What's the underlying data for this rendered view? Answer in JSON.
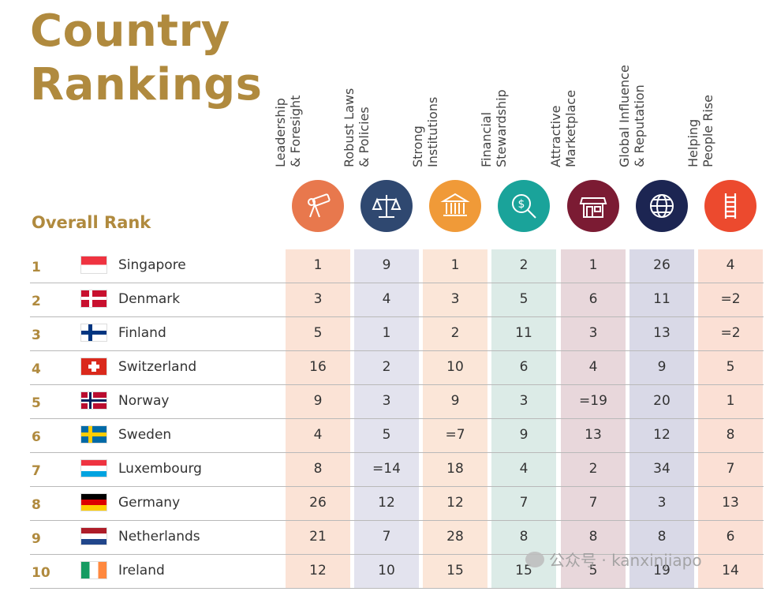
{
  "title_line1": "Country",
  "title_line2": "Rankings",
  "overall_label": "Overall Rank",
  "columns": [
    {
      "label": "Leadership\n& Foresight",
      "icon": "telescope-icon",
      "icon_color": "#e8784d",
      "col_color": "#fbe3d6"
    },
    {
      "label": "Robust Laws\n& Policies",
      "icon": "scales-icon",
      "icon_color": "#2f4870",
      "col_color": "#e3e3ee"
    },
    {
      "label": "Strong\nInstitutions",
      "icon": "building-icon",
      "icon_color": "#f09a38",
      "col_color": "#fbe6d8"
    },
    {
      "label": "Financial\nStewardship",
      "icon": "money-search-icon",
      "icon_color": "#1aa39a",
      "col_color": "#dcebe7"
    },
    {
      "label": "Attractive\nMarketplace",
      "icon": "storefront-icon",
      "icon_color": "#7b1b33",
      "col_color": "#e8d7db"
    },
    {
      "label": "Global Influence\n& Reputation",
      "icon": "globe-icon",
      "icon_color": "#1c2552",
      "col_color": "#d9d9e7"
    },
    {
      "label": "Helping\nPeople Rise",
      "icon": "ladder-icon",
      "icon_color": "#ec4a2e",
      "col_color": "#fbe0d5"
    }
  ],
  "rows": [
    {
      "rank": "1",
      "country": "Singapore",
      "flag": "singapore-flag",
      "values": [
        "1",
        "9",
        "1",
        "2",
        "1",
        "26",
        "4"
      ]
    },
    {
      "rank": "2",
      "country": "Denmark",
      "flag": "denmark-flag",
      "values": [
        "3",
        "4",
        "3",
        "5",
        "6",
        "11",
        "=2"
      ]
    },
    {
      "rank": "3",
      "country": "Finland",
      "flag": "finland-flag",
      "values": [
        "5",
        "1",
        "2",
        "11",
        "3",
        "13",
        "=2"
      ]
    },
    {
      "rank": "4",
      "country": "Switzerland",
      "flag": "switzerland-flag",
      "values": [
        "16",
        "2",
        "10",
        "6",
        "4",
        "9",
        "5"
      ]
    },
    {
      "rank": "5",
      "country": "Norway",
      "flag": "norway-flag",
      "values": [
        "9",
        "3",
        "9",
        "3",
        "=19",
        "20",
        "1"
      ]
    },
    {
      "rank": "6",
      "country": "Sweden",
      "flag": "sweden-flag",
      "values": [
        "4",
        "5",
        "=7",
        "9",
        "13",
        "12",
        "8"
      ]
    },
    {
      "rank": "7",
      "country": "Luxembourg",
      "flag": "luxembourg-flag",
      "values": [
        "8",
        "=14",
        "18",
        "4",
        "2",
        "34",
        "7"
      ]
    },
    {
      "rank": "8",
      "country": "Germany",
      "flag": "germany-flag",
      "values": [
        "26",
        "12",
        "12",
        "7",
        "7",
        "3",
        "13"
      ]
    },
    {
      "rank": "9",
      "country": "Netherlands",
      "flag": "netherlands-flag",
      "values": [
        "21",
        "7",
        "28",
        "8",
        "8",
        "8",
        "6"
      ]
    },
    {
      "rank": "10",
      "country": "Ireland",
      "flag": "ireland-flag",
      "values": [
        "12",
        "10",
        "15",
        "15",
        "5",
        "19",
        "14"
      ]
    }
  ],
  "watermark": "公众号 · kanxinjiapo"
}
